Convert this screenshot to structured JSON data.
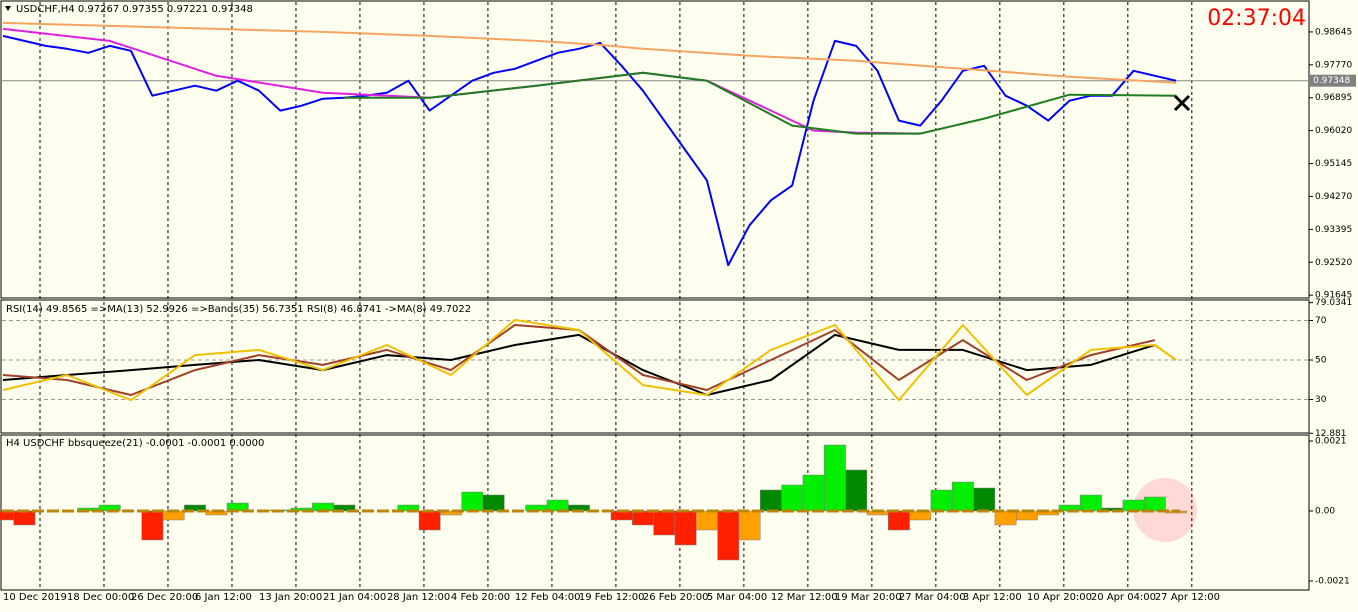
{
  "clock": "02:37:04",
  "chart_data": [
    {
      "type": "line",
      "title": "USDCHF,H4  0.97267 0.97355 0.97221 0.97348",
      "categories": [
        "10 Dec 2019",
        null,
        null,
        "18 Dec 00:00",
        null,
        null,
        "26 Dec 20:00",
        null,
        null,
        "6 Jan 12:00",
        null,
        null,
        "13 Jan 20:00",
        null,
        null,
        "21 Jan 04:00",
        null,
        null,
        "28 Jan 12:00",
        null,
        null,
        "4 Feb 20:00",
        null,
        null,
        "12 Feb 04:00",
        null,
        null,
        "19 Feb 12:00",
        null,
        null,
        "26 Feb 20:00",
        null,
        null,
        "5 Mar 04:00",
        null,
        null,
        "12 Mar 12:00",
        null,
        null,
        "19 Mar 20:00",
        null,
        null,
        "27 Mar 04:00",
        null,
        null,
        "3 Apr 12:00",
        null,
        null,
        "10 Apr 20:00",
        null,
        null,
        "20 Apr 04:00",
        null,
        null,
        "27 Apr 12:00",
        null
      ],
      "ylim": [
        0.9157,
        0.99467
      ],
      "yticks": [
        0.98645,
        {
          "value": 0.9777,
          "label": "0.97770"
        },
        0.96895,
        {
          "value": 0.9602,
          "label": "0.96020"
        },
        0.95145,
        {
          "value": 0.9427,
          "label": "0.94270"
        },
        0.93395,
        {
          "value": 0.9252,
          "label": "0.92520"
        },
        0.91645
      ],
      "last_price": {
        "value": 0.97348,
        "label": "0.97348"
      },
      "series": [
        {
          "color": "#0000ff",
          "values": [
            0.98539,
            0.98406,
            0.98274,
            0.98195,
            0.98089,
            0.98274,
            0.98142,
            0.96949,
            0.97082,
            0.97214,
            0.97082,
            0.97347,
            0.97082,
            0.96552,
            0.96684,
            0.9687,
            0.96896,
            0.96949,
            0.97029,
            0.97347,
            0.96552,
            0.96949,
            0.97347,
            0.97558,
            0.97664,
            0.97876,
            0.98089,
            0.98195,
            0.98354,
            0.97744,
            0.97082,
            0.96287,
            0.95492,
            0.94697,
            0.92444,
            0.93504,
            0.94167,
            0.94564,
            0.96817,
            0.98406,
            0.98274,
            0.97612,
            0.96287,
            0.96154,
            0.96817,
            0.97612,
            0.97744,
            0.96949,
            0.96684,
            0.96287,
            0.96817,
            0.96949,
            0.96949,
            0.97612,
            0.97479,
            0.97347
          ]
        },
        {
          "color": "#f4a460",
          "x": [
            0,
            5,
            10,
            15,
            20,
            25,
            28,
            30,
            35,
            40,
            45,
            50,
            55
          ],
          "values": [
            0.98884,
            0.98804,
            0.98725,
            0.98645,
            0.98539,
            0.98407,
            0.98301,
            0.98195,
            0.98009,
            0.97877,
            0.97665,
            0.97453,
            0.97294
          ]
        },
        {
          "color": "#e020e0",
          "x": [
            0,
            5,
            10,
            15,
            20,
            25,
            30,
            33,
            36,
            38,
            40,
            43
          ],
          "values": [
            0.98725,
            0.98407,
            0.97479,
            0.97029,
            0.96896,
            0.97214,
            0.97559,
            0.97347,
            0.96552,
            0.96022,
            0.95969,
            0.95942
          ]
        },
        {
          "color": "#1e7d1e",
          "x": [
            16,
            20,
            25,
            30,
            33,
            37,
            40,
            43,
            46,
            50,
            55
          ],
          "values": [
            0.96896,
            0.96896,
            0.97214,
            0.97559,
            0.97347,
            0.96154,
            0.95942,
            0.95942,
            0.9634,
            0.96976,
            0.96949
          ]
        }
      ]
    },
    {
      "type": "line",
      "title": "RSI(14) 49.8565  =>MA(13) 52.9926  =>Bands(35) 56.7351  RSI(8) 46.8741  ->MA(8) 49.7022",
      "ylim": [
        13.04,
        80.38
      ],
      "yticks": [
        79.0341,
        70,
        50,
        30,
        12.881
      ],
      "levels": [
        70,
        50,
        30
      ],
      "series": [
        {
          "color": "#000000",
          "x": [
            0,
            3,
            6,
            9,
            12,
            15,
            18,
            21,
            24,
            27,
            30,
            33,
            36,
            39,
            42,
            45,
            48,
            51,
            54
          ],
          "values": [
            39.9,
            42.4,
            44.9,
            47.5,
            50,
            44.9,
            52.5,
            50,
            57.6,
            62.7,
            44.9,
            32.3,
            39.9,
            62.7,
            55.1,
            55.1,
            44.9,
            47.5,
            57.6
          ]
        },
        {
          "color": "#a0402a",
          "x": [
            0,
            3,
            6,
            9,
            12,
            15,
            18,
            21,
            24,
            27,
            30,
            33,
            36,
            39,
            42,
            45,
            48,
            51,
            54
          ],
          "values": [
            42.4,
            39.9,
            32.3,
            44.9,
            52.5,
            47.5,
            55.1,
            44.9,
            67.7,
            65.2,
            42.4,
            34.8,
            50,
            65.2,
            39.9,
            60.1,
            39.9,
            52.5,
            60.1
          ]
        },
        {
          "color": "#f0c000",
          "x": [
            0,
            3,
            6,
            9,
            12,
            15,
            18,
            21,
            24,
            27,
            30,
            33,
            36,
            39,
            42,
            45,
            48,
            51,
            54,
            55
          ],
          "values": [
            34.8,
            42.4,
            29.7,
            52.5,
            55.1,
            44.9,
            57.6,
            42.4,
            70.3,
            65.2,
            37.3,
            32.3,
            55.1,
            67.7,
            29.7,
            67.7,
            32.3,
            55.1,
            57.6,
            50
          ]
        }
      ]
    },
    {
      "type": "histogram",
      "title": "H4 USDCHF bbsqueeze(21) -0.0001 -0.0001 0.0000",
      "ylim": [
        -0.00237,
        0.00228
      ],
      "yticks": [
        0.0021,
        {
          "value": 0,
          "label": "0.00"
        },
        -0.0021
      ],
      "colors": {
        "up": "#00ee00",
        "up_weak": "#008800",
        "down": "#ff2000",
        "down_weak": "#ffa000"
      },
      "values": [
        -0.00027,
        -0.00042,
        0,
        0,
        9e-05,
        0.00018,
        0,
        -0.00087,
        -0.00027,
        0.00018,
        -0.00012,
        0.00024,
        0,
        3e-05,
        9e-05,
        0.00024,
        0.00018,
        0,
        0,
        0.00018,
        -0.00057,
        -0.00012,
        0.00057,
        0.00048,
        0,
        0.00018,
        0.00033,
        0.00018,
        0,
        -0.00027,
        -0.00042,
        -0.00072,
        -0.00102,
        -0.00057,
        -0.00147,
        -0.00087,
        0.00063,
        0.00078,
        0.00108,
        0.00198,
        0.00123,
        -0.00012,
        -0.00057,
        -0.00027,
        0.00063,
        0.00087,
        0.00069,
        -0.00042,
        -0.00027,
        -0.00012,
        0.00018,
        0.00048,
        9e-05,
        0.00033,
        0.00042,
        -6e-05
      ]
    }
  ]
}
